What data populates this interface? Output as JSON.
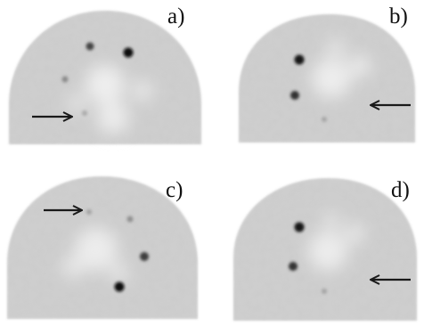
{
  "panels": [
    {
      "label": "a)"
    },
    {
      "label": "b)"
    },
    {
      "label": "c)"
    },
    {
      "label": "d)"
    }
  ],
  "colors": {
    "background": "#ffffff",
    "phantom_fill": "#cfcfcf",
    "hot_lesion": "#111111",
    "warm_region": "#eeeeee",
    "arrow": "#1a1a1a"
  }
}
